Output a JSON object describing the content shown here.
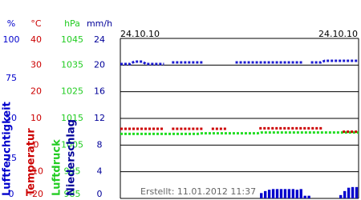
{
  "chart_data": {
    "type": "line",
    "date_start": "24.10.10",
    "date_end": "24.10.10",
    "credit": "Erstellt: 11.01.2012 11:37",
    "axes": [
      {
        "label": "Luftfeuchtigkeit",
        "unit": "%",
        "color": "#0000cc",
        "lim": [
          0,
          100
        ],
        "ticks": [
          100,
          75,
          50,
          25,
          0
        ]
      },
      {
        "label": "Temperatur",
        "unit": "°C",
        "color": "#cc0000",
        "lim": [
          -20,
          40
        ],
        "ticks": [
          40,
          30,
          20,
          10,
          0,
          -10,
          -20
        ]
      },
      {
        "label": "Luftdruck",
        "unit": "hPa",
        "color": "#22cc22",
        "lim": [
          985,
          1045
        ],
        "ticks": [
          1045,
          1035,
          1025,
          1015,
          1005,
          995,
          985
        ]
      },
      {
        "label": "Niederschlag",
        "unit": "mm/h",
        "color": "#000099",
        "lim": [
          0,
          24
        ],
        "ticks": [
          24,
          20,
          16,
          12,
          8,
          4,
          0
        ]
      }
    ],
    "grid": true,
    "series": [
      {
        "axis": 0,
        "style": "dotted",
        "color": "#1a1ad0",
        "values": [
          84,
          84,
          84,
          85.5,
          85.5,
          85.5,
          84,
          84,
          84,
          84,
          84,
          null,
          null,
          85,
          85,
          85,
          85,
          85,
          85,
          85,
          85,
          null,
          null,
          null,
          null,
          null,
          null,
          null,
          null,
          85,
          85,
          85,
          85,
          85,
          85,
          85,
          85,
          85,
          85,
          85,
          85,
          85,
          85,
          85,
          85,
          85,
          null,
          null,
          85,
          85,
          85,
          86,
          86,
          86,
          86,
          86,
          86,
          86,
          86,
          86
        ]
      },
      {
        "axis": 2,
        "style": "dotted",
        "color": "#22dd22",
        "values": [
          1009.2,
          1009.2,
          1009.2,
          1009.2,
          1009.2,
          1009.2,
          1009.2,
          1009.2,
          1009.2,
          1009.2,
          1009.2,
          1009.2,
          1009.2,
          1009.2,
          1009.2,
          1009.2,
          1009.2,
          1009.2,
          1009.2,
          1009.2,
          1009.4,
          1009.4,
          1009.4,
          1009.4,
          1009.4,
          1009.4,
          1009.4,
          1009.4,
          1009.4,
          1009.4,
          1009.4,
          1009.4,
          1009.4,
          1009.4,
          1009.4,
          1009.7,
          1009.7,
          1009.7,
          1009.7,
          1009.7,
          1009.7,
          1009.7,
          1009.7,
          1009.7,
          1009.7,
          1009.7,
          1009.7,
          1009.7,
          1009.7,
          1009.7,
          1009.7,
          1009.7,
          1009.7,
          1009.7,
          1009.7,
          1009.7,
          1009.7,
          1009.7,
          1009.7,
          1009.7
        ]
      },
      {
        "axis": 1,
        "style": "dotted",
        "color": "#cc0000",
        "values": [
          6.1,
          6.1,
          6.1,
          6.1,
          6.1,
          6.1,
          6.1,
          6.1,
          6.1,
          6.1,
          6.1,
          null,
          null,
          6.1,
          6.1,
          6.1,
          6.1,
          6.1,
          6.1,
          6.1,
          6.1,
          null,
          null,
          6.1,
          6.1,
          6.1,
          6.1,
          null,
          null,
          null,
          null,
          null,
          null,
          null,
          null,
          6.3,
          6.3,
          6.3,
          6.3,
          6.3,
          6.3,
          6.3,
          6.3,
          6.3,
          6.3,
          6.3,
          6.3,
          6.3,
          6.3,
          6.3,
          6.3,
          null,
          null,
          null,
          null,
          null,
          5,
          5,
          5,
          5
        ]
      },
      {
        "axis": 3,
        "style": "bar",
        "color": "#0000cc",
        "values": [
          0,
          0,
          0,
          0,
          0,
          0,
          0,
          0,
          0,
          0,
          0,
          0,
          0,
          0,
          0,
          0,
          0,
          0,
          0,
          0,
          0,
          0,
          0,
          0,
          0,
          0,
          0,
          0,
          0,
          0,
          0,
          0,
          0,
          0,
          0,
          0.8,
          1.1,
          1.3,
          1.4,
          1.4,
          1.4,
          1.4,
          1.4,
          1.4,
          1.3,
          1.4,
          0.4,
          0.4,
          0,
          0,
          0,
          0,
          0,
          0,
          0,
          0.5,
          1.1,
          1.6,
          1.7,
          1.7
        ]
      }
    ]
  }
}
